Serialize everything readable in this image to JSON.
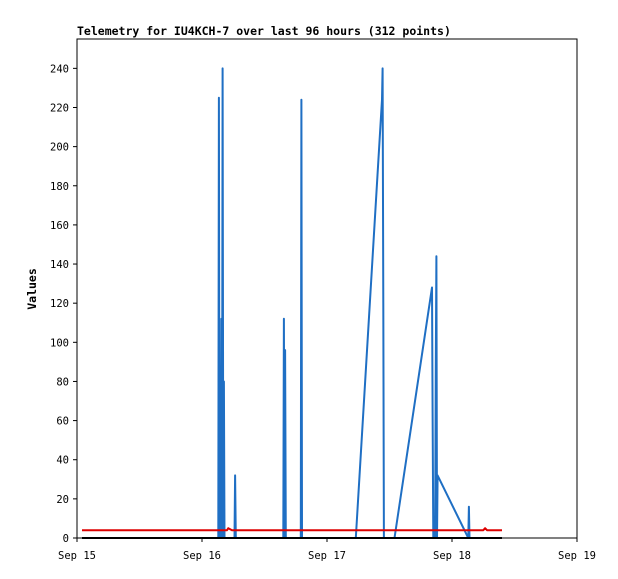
{
  "chart_data": {
    "type": "line",
    "title": "Telemetry for IU4KCH-7 over last 96 hours (312 points)",
    "xlabel": "",
    "ylabel": "Values",
    "x_unit": "days",
    "xlim": [
      0,
      4
    ],
    "ylim": [
      0,
      255
    ],
    "x_ticks": [
      {
        "x": 0,
        "label": "Sep 15"
      },
      {
        "x": 1,
        "label": "Sep 16"
      },
      {
        "x": 2,
        "label": "Sep 17"
      },
      {
        "x": 3,
        "label": "Sep 18"
      },
      {
        "x": 4,
        "label": "Sep 19"
      }
    ],
    "y_ticks": [
      0,
      20,
      40,
      60,
      80,
      100,
      120,
      140,
      160,
      180,
      200,
      220,
      240
    ],
    "grid": false,
    "series": [
      {
        "color": "#1f6fc4",
        "points": [
          [
            1.13,
            0
          ],
          [
            1.135,
            225
          ],
          [
            1.14,
            0
          ],
          [
            1.145,
            48
          ],
          [
            1.15,
            0
          ],
          [
            1.155,
            112
          ],
          [
            1.16,
            0
          ],
          [
            1.165,
            240
          ],
          [
            1.17,
            0
          ],
          [
            1.175,
            80
          ],
          [
            1.18,
            0
          ],
          [
            1.26,
            0
          ],
          [
            1.265,
            32
          ],
          [
            1.27,
            0
          ],
          [
            1.65,
            0
          ],
          [
            1.655,
            112
          ],
          [
            1.66,
            0
          ],
          [
            1.665,
            96
          ],
          [
            1.67,
            0
          ],
          [
            1.79,
            0
          ],
          [
            1.795,
            224
          ],
          [
            1.8,
            0
          ],
          [
            2.23,
            0
          ],
          [
            2.44,
            224
          ],
          [
            2.445,
            240
          ],
          [
            2.45,
            120
          ],
          [
            2.455,
            0
          ],
          [
            2.54,
            0
          ],
          [
            2.84,
            128
          ],
          [
            2.845,
            64
          ],
          [
            2.85,
            0
          ],
          [
            2.865,
            0
          ],
          [
            2.87,
            88
          ],
          [
            2.875,
            144
          ],
          [
            2.88,
            0
          ],
          [
            2.885,
            32
          ],
          [
            3.13,
            0
          ],
          [
            3.135,
            16
          ],
          [
            3.14,
            0
          ]
        ]
      },
      {
        "color": "#dd0000",
        "points": [
          [
            0.04,
            4
          ],
          [
            1.2,
            4
          ],
          [
            1.21,
            5
          ],
          [
            1.24,
            4
          ],
          [
            3.25,
            4
          ],
          [
            3.265,
            5
          ],
          [
            3.28,
            4
          ],
          [
            3.4,
            4
          ]
        ]
      },
      {
        "color": "#000000",
        "points": [
          [
            0.04,
            0
          ],
          [
            3.4,
            0
          ]
        ]
      }
    ]
  }
}
